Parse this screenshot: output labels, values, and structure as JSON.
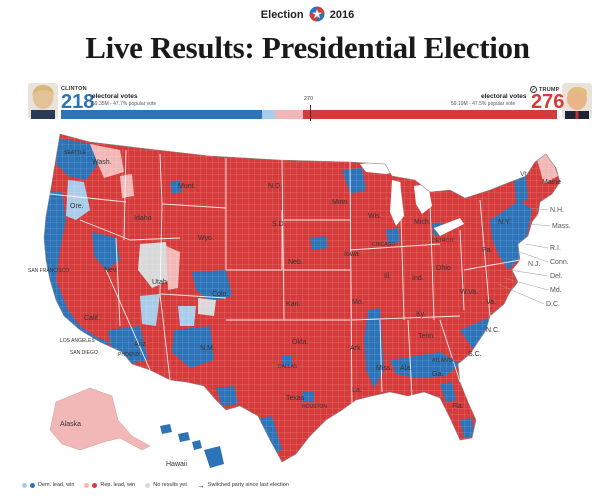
{
  "header": {
    "brand_left": "Election",
    "brand_right": "2016",
    "title": "Live Results: Presidential Election"
  },
  "candidates": {
    "dem": {
      "name": "CLINTON",
      "electoral_votes": "218",
      "ev_label": "electoral votes",
      "popular_vote": "59.35M - 47.7% popular vote",
      "color": "#2d73b8"
    },
    "rep": {
      "name": "TRUMP",
      "electoral_votes": "276",
      "ev_label": "electoral votes",
      "popular_vote": "59.19M - 47.5% popular vote",
      "color": "#d63b3b",
      "winner_mark": "✓"
    }
  },
  "bar": {
    "threshold_label": "270",
    "total_ev": 538,
    "segments": [
      {
        "party": "dem-win",
        "value": 218,
        "color": "#2d73b8"
      },
      {
        "party": "dem-lead",
        "value": 14,
        "color": "#a9cde9"
      },
      {
        "party": "rep-lead",
        "value": 30,
        "color": "#f2b8b8"
      },
      {
        "party": "rep-win",
        "value": 276,
        "color": "#d63b3b"
      }
    ]
  },
  "map": {
    "labels": {
      "seattle": "SEATTLE",
      "wash": "Wash.",
      "mont": "Mont.",
      "nd": "N.D.",
      "minn": "Minn.",
      "ore": "Ore.",
      "idaho": "Idaho",
      "wyo": "Wyo.",
      "sd": "S.D.",
      "wis": "Wis.",
      "mich": "Mich.",
      "san_francisco": "SAN FRANCISCO",
      "nev": "Nev.",
      "utah": "Utah",
      "colo": "Colo.",
      "neb": "Neb.",
      "iowa": "Iowa",
      "ill": "Ill.",
      "ind": "Ind.",
      "ohio": "Ohio",
      "kan": "Kan.",
      "mo": "Mo.",
      "ky": "Ky.",
      "wva": "W.Va.",
      "va": "Va.",
      "calif": "Calif.",
      "los_angeles": "LOS ANGELES",
      "san_diego": "SAN DIEGO",
      "ariz": "Ariz.",
      "nm": "N.M.",
      "okla": "Okla.",
      "ark": "Ark.",
      "tenn": "Tenn.",
      "nc": "N.C.",
      "sc": "S.C.",
      "texas": "Texas",
      "la": "La.",
      "miss": "Miss.",
      "ala": "Ala.",
      "ga": "Ga.",
      "fla": "Fla.",
      "pa": "Pa.",
      "ny": "N.Y.",
      "detroit": "DETROIT",
      "chicago": "CHICAGO",
      "phoenix": "PHOENIX",
      "dallas": "DALLAS",
      "houston": "HOUSTON",
      "atlanta": "ATLANTA",
      "alaska": "Alaska",
      "hawaii": "Hawaii",
      "vt": "Vt.",
      "maine": "Maine",
      "nh": "N.H.",
      "mass": "Mass.",
      "ri": "R.I.",
      "conn": "Conn.",
      "nj": "N.J.",
      "del": "Del.",
      "md": "Md.",
      "dc": "D.C."
    },
    "colors": {
      "dem_win": "#2d73b8",
      "dem_lead": "#a9cde9",
      "rep_win": "#d63b3b",
      "rep_lead": "#f2b8b8",
      "no_results": "#d9d9d9"
    }
  },
  "legend": {
    "items": [
      {
        "label": "Dem. lead, win",
        "colors": [
          "#a9cde9",
          "#2d73b8"
        ]
      },
      {
        "label": "Rep. lead, win",
        "colors": [
          "#f2b8b8",
          "#d63b3b"
        ]
      },
      {
        "label": "No results yet",
        "colors": [
          "#d9d9d9"
        ]
      },
      {
        "label": "Switched party since last election",
        "symbol": "→"
      }
    ]
  }
}
